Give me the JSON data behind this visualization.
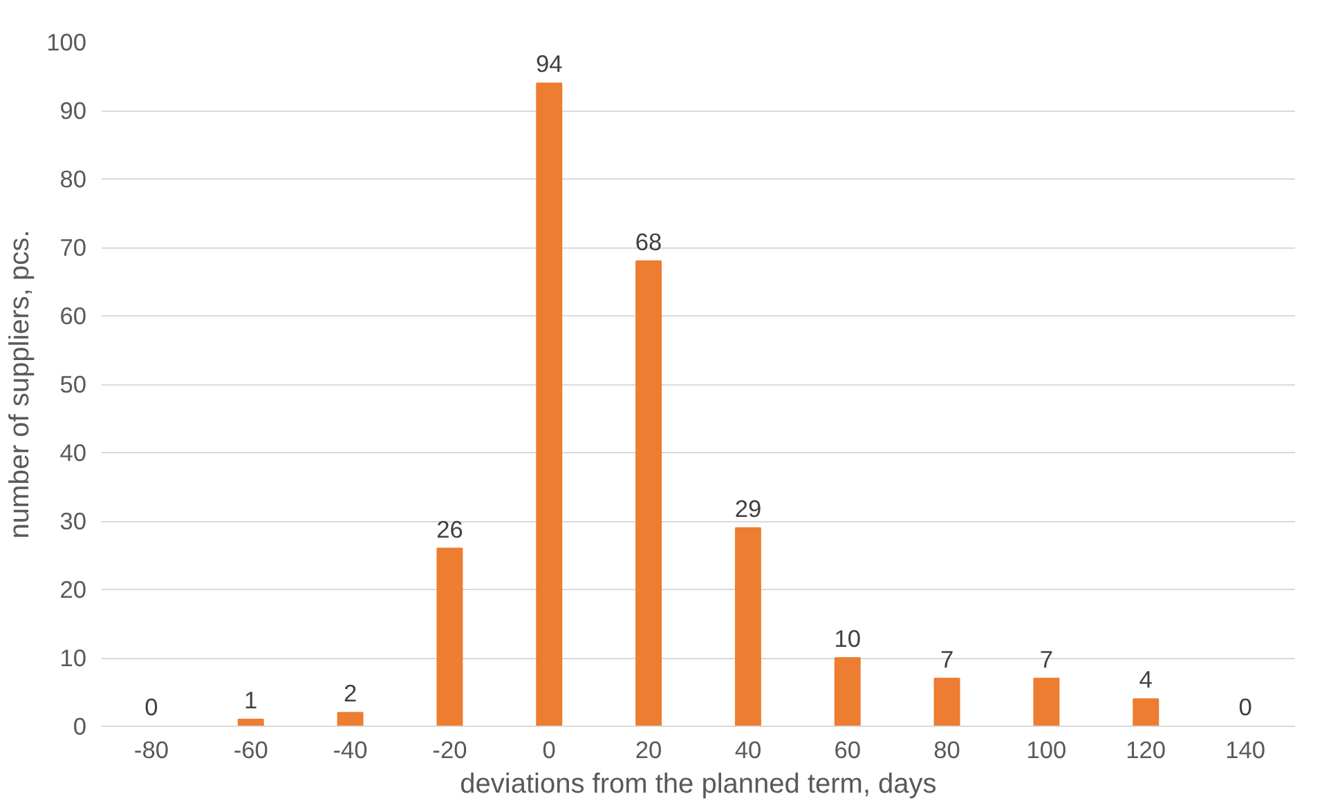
{
  "chart_data": {
    "type": "bar",
    "xlabel": "deviations from the planned term, days",
    "ylabel": "number of suppliers, pcs.",
    "categories": [
      "-80",
      "-60",
      "-40",
      "-20",
      "0",
      "20",
      "40",
      "60",
      "80",
      "100",
      "120",
      "140"
    ],
    "values": [
      0,
      1,
      2,
      26,
      94,
      68,
      29,
      10,
      7,
      7,
      4,
      0
    ],
    "color": "#ed7d31",
    "ylim": [
      0,
      100
    ],
    "yticks": [
      0,
      10,
      20,
      30,
      40,
      50,
      60,
      70,
      80,
      90,
      100
    ],
    "grid": "y",
    "data_labels": true
  }
}
